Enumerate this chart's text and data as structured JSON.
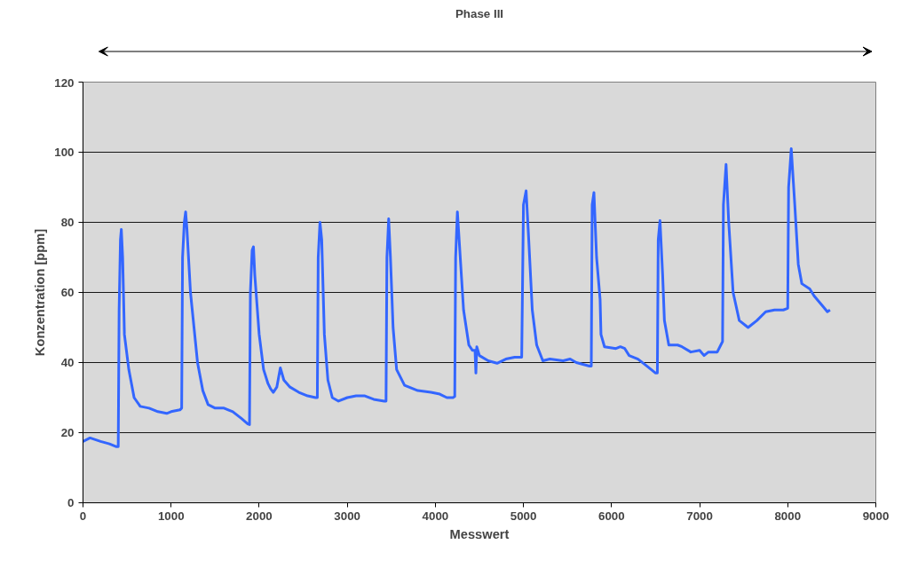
{
  "chart_data": {
    "type": "line",
    "title": "Phase III",
    "xlabel": "Messwert",
    "ylabel": "Konzentration [ppm]",
    "xlim": [
      0,
      9000
    ],
    "xticks": [
      0,
      1000,
      2000,
      3000,
      4000,
      5000,
      6000,
      7000,
      8000,
      9000
    ],
    "ylim": [
      0,
      120
    ],
    "yticks": [
      0,
      20,
      40,
      60,
      80,
      100,
      120
    ],
    "grid": "y",
    "marker": "none",
    "line_style": "solid",
    "series": [
      {
        "color": "#3366ff",
        "x": [
          0,
          80,
          200,
          300,
          380,
          400,
          410,
          425,
          435,
          450,
          470,
          520,
          580,
          650,
          750,
          850,
          950,
          1000,
          1100,
          1120,
          1130,
          1150,
          1165,
          1180,
          1220,
          1300,
          1360,
          1420,
          1500,
          1600,
          1700,
          1800,
          1870,
          1890,
          1900,
          1920,
          1935,
          1950,
          2000,
          2050,
          2100,
          2130,
          2160,
          2200,
          2240,
          2280,
          2350,
          2450,
          2550,
          2640,
          2660,
          2670,
          2690,
          2710,
          2740,
          2780,
          2830,
          2900,
          3000,
          3100,
          3200,
          3300,
          3420,
          3440,
          3450,
          3470,
          3490,
          3520,
          3560,
          3650,
          3800,
          3950,
          4050,
          4130,
          4200,
          4220,
          4230,
          4250,
          4270,
          4320,
          4380,
          4420,
          4450,
          4460,
          4470,
          4500,
          4600,
          4700,
          4800,
          4900,
          4980,
          5000,
          5030,
          5060,
          5100,
          5150,
          5220,
          5300,
          5450,
          5530,
          5600,
          5750,
          5770,
          5780,
          5800,
          5830,
          5870,
          5880,
          5920,
          6050,
          6100,
          6150,
          6200,
          6300,
          6400,
          6500,
          6520,
          6530,
          6550,
          6580,
          6600,
          6650,
          6750,
          6800,
          6900,
          7000,
          7050,
          7100,
          7200,
          7250,
          7260,
          7270,
          7300,
          7330,
          7380,
          7450,
          7550,
          7650,
          7750,
          7850,
          7950,
          8000,
          8010,
          8040,
          8080,
          8120,
          8160,
          8250,
          8300,
          8400,
          8450,
          8480
        ],
        "values": [
          17.5,
          18.5,
          17.5,
          16.8,
          16,
          16,
          55,
          75,
          78,
          70,
          48,
          38,
          30,
          27.5,
          27,
          26,
          25.5,
          26,
          26.5,
          27,
          70,
          80,
          83,
          78,
          60,
          40,
          32,
          28,
          27,
          27,
          26,
          24,
          22.5,
          22.3,
          60,
          72,
          73,
          65,
          48,
          38,
          34,
          32.5,
          31.5,
          33,
          38.5,
          35,
          33,
          31.5,
          30.5,
          30,
          30,
          70,
          80,
          75,
          48,
          35,
          30,
          29,
          30,
          30.5,
          30.5,
          29.5,
          29,
          29,
          70,
          81,
          70,
          50,
          38,
          33.5,
          32,
          31.5,
          31,
          30,
          30,
          30.3,
          70,
          83,
          75,
          55,
          45,
          43.5,
          43.5,
          37,
          44.5,
          42,
          40.5,
          39.8,
          41,
          41.5,
          41.5,
          85,
          89,
          75,
          55,
          45,
          40.5,
          41,
          40.5,
          41,
          40,
          39,
          39,
          85,
          88.5,
          70,
          58,
          48,
          44.5,
          44,
          44.5,
          44,
          42,
          41,
          39,
          37,
          37,
          75,
          80.5,
          65,
          52,
          45,
          45,
          44.5,
          43,
          43.5,
          42,
          43,
          43,
          45.5,
          46,
          85,
          96.5,
          80,
          60,
          52,
          50,
          52,
          54.5,
          55,
          55,
          55.5,
          90,
          101,
          85,
          68,
          62.5,
          61,
          59,
          56,
          54.5,
          55
        ]
      }
    ]
  }
}
